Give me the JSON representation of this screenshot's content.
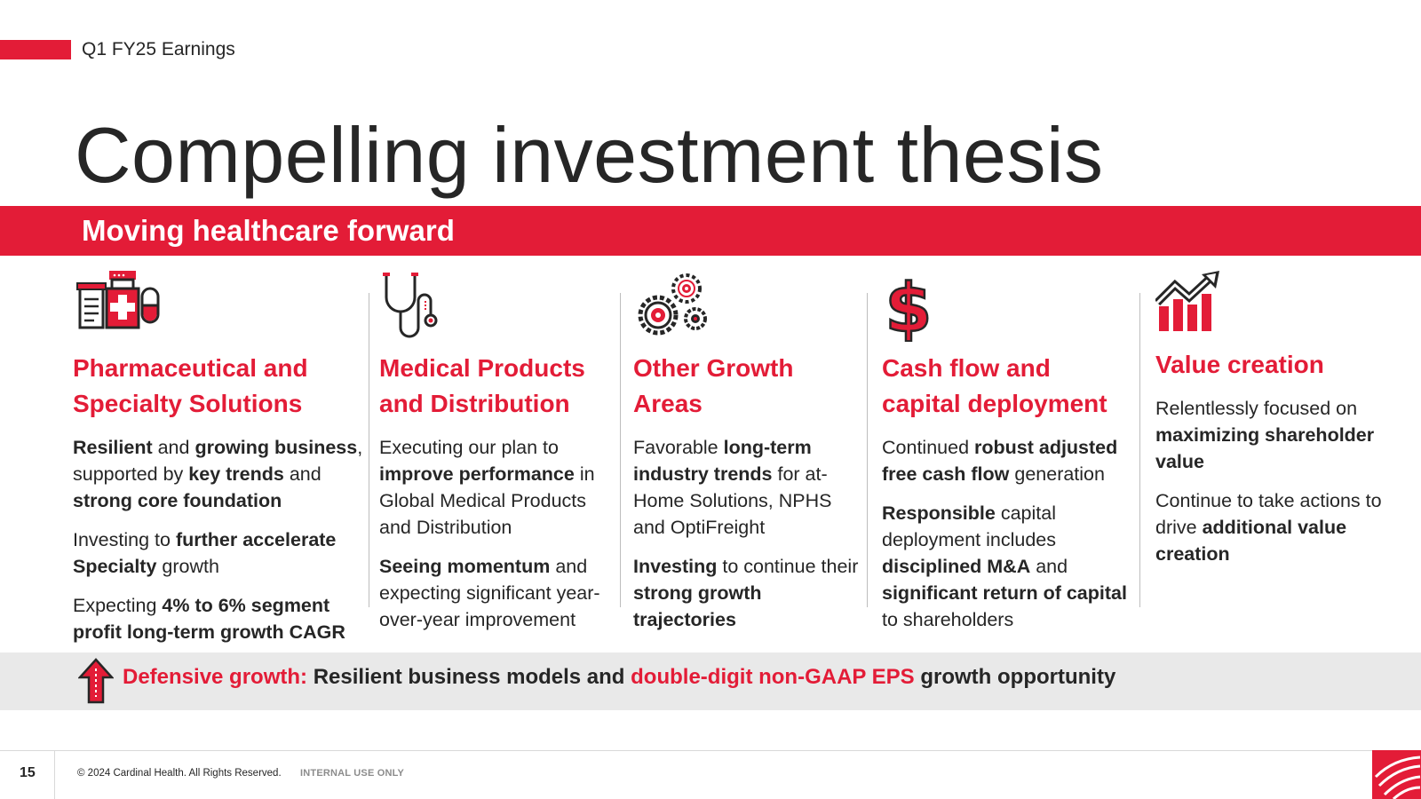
{
  "header": {
    "eyebrow": "Q1 FY25 Earnings",
    "title": "Compelling investment thesis"
  },
  "banner": {
    "text": "Moving healthcare forward"
  },
  "columns": [
    {
      "icon": "pharmacy-icon",
      "title": "Pharmaceutical and Specialty Solutions",
      "paragraphs": [
        [
          [
            "Resilient",
            true
          ],
          [
            " and ",
            false
          ],
          [
            "growing business",
            true
          ],
          [
            ", supported by ",
            false
          ],
          [
            "key trends",
            true
          ],
          [
            " and ",
            false
          ],
          [
            "strong core foundation",
            true
          ]
        ],
        [
          [
            "Investing to ",
            false
          ],
          [
            "further accelerate Specialty",
            true
          ],
          [
            " growth",
            false
          ]
        ],
        [
          [
            "Expecting ",
            false
          ],
          [
            "4% to 6% segment profit long-term growth CAGR",
            true
          ]
        ]
      ]
    },
    {
      "icon": "stethoscope-icon",
      "title": "Medical Products and Distribution",
      "paragraphs": [
        [
          [
            "Executing our plan to ",
            false
          ],
          [
            "improve performance",
            true
          ],
          [
            " in Global Medical Products and Distribution",
            false
          ]
        ],
        [
          [
            "Seeing momentum",
            true
          ],
          [
            " and expecting significant year-over-year improvement",
            false
          ]
        ]
      ]
    },
    {
      "icon": "gears-icon",
      "title": "Other Growth Areas",
      "paragraphs": [
        [
          [
            "Favorable ",
            false
          ],
          [
            "long-term industry trends",
            true
          ],
          [
            " for at-Home Solutions, NPHS and OptiFreight",
            false
          ]
        ],
        [
          [
            "Investing",
            true
          ],
          [
            " to continue their ",
            false
          ],
          [
            "strong growth trajectories",
            true
          ]
        ]
      ]
    },
    {
      "icon": "dollar-sign-icon",
      "title": "Cash flow and capital deployment",
      "paragraphs": [
        [
          [
            "Continued ",
            false
          ],
          [
            "robust adjusted free cash flow",
            true
          ],
          [
            " generation",
            false
          ]
        ],
        [
          [
            "Responsible",
            true
          ],
          [
            " capital deployment includes ",
            false
          ],
          [
            "disciplined M&A",
            true
          ],
          [
            " and ",
            false
          ],
          [
            "significant return of capital",
            true
          ],
          [
            " to shareholders",
            false
          ]
        ]
      ]
    },
    {
      "icon": "growth-chart-icon",
      "title": "Value creation",
      "paragraphs": [
        [
          [
            "Relentlessly focused on ",
            false
          ],
          [
            "maximizing shareholder value",
            true
          ]
        ],
        [
          [
            "Continue to take actions to drive ",
            false
          ],
          [
            "additional value creation",
            true
          ]
        ]
      ]
    }
  ],
  "footer_band": {
    "label": "Defensive growth:",
    "text_1": " Resilient business models and ",
    "highlight": "double-digit non-GAAP EPS",
    "text_2": " growth opportunity"
  },
  "footer": {
    "page": "15",
    "copyright": "© 2024 Cardinal Health. All Rights Reserved.",
    "classification": "INTERNAL USE ONLY"
  },
  "colors": {
    "brand_red": "#e31c37",
    "text": "#262626",
    "band_gray": "#e9e9e9"
  }
}
